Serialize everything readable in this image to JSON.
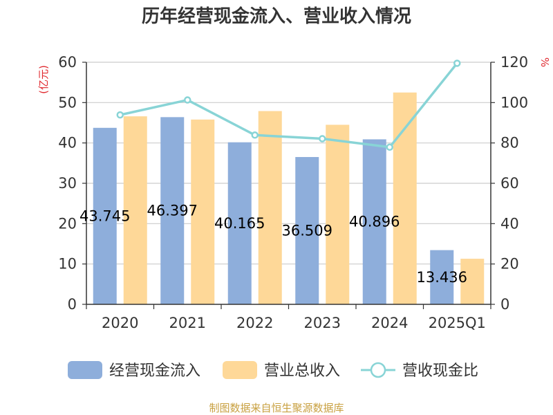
{
  "chart_data": {
    "type": "bar",
    "title": "历年经营现金流入、营业收入情况",
    "categories": [
      "2020",
      "2021",
      "2022",
      "2023",
      "2024",
      "2025Q1"
    ],
    "series": [
      {
        "name": "经营现金流入",
        "type": "bar",
        "axis": "left",
        "color": "#8eaedb",
        "values": [
          43.745,
          46.397,
          40.165,
          36.509,
          40.896,
          13.436
        ],
        "labels": [
          "43.745",
          "46.397",
          "40.165",
          "36.509",
          "40.896",
          "13.436"
        ]
      },
      {
        "name": "营业总收入",
        "type": "bar",
        "axis": "left",
        "color": "#fed898",
        "values": [
          46.6,
          45.8,
          47.9,
          44.5,
          52.5,
          11.3
        ]
      },
      {
        "name": "营收现金比",
        "type": "line",
        "axis": "right",
        "color": "#88d4d6",
        "values": [
          93.9,
          101.3,
          83.9,
          82.1,
          77.9,
          119.5
        ]
      }
    ],
    "y_left": {
      "unit": "(亿元)",
      "ylim": [
        0,
        60
      ],
      "ticks": [
        "0",
        "10",
        "20",
        "30",
        "40",
        "50",
        "60"
      ]
    },
    "y_right": {
      "unit": "%",
      "ylim": [
        0,
        120
      ],
      "ticks": [
        "0",
        "20",
        "40",
        "60",
        "80",
        "100",
        "120"
      ]
    },
    "grid": true,
    "legend": "bottom",
    "source": "制图数据来自恒生聚源数据库"
  }
}
